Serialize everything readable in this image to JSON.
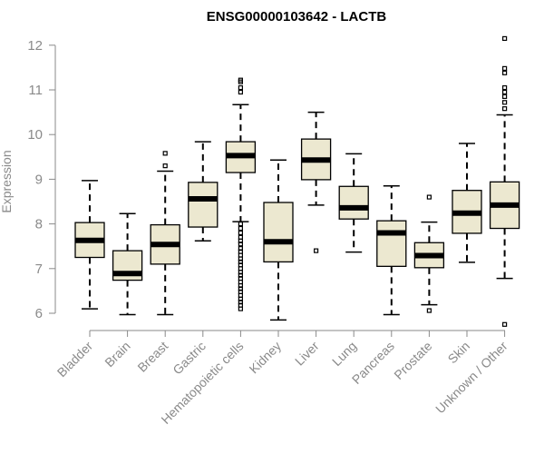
{
  "chart_data": {
    "type": "box",
    "title": "ENSG00000103642 - LACTB",
    "ylabel": "Expression",
    "xlabel": "",
    "ylim": [
      5.55,
      12.1
    ],
    "yticks": [
      6,
      7,
      8,
      9,
      10,
      11,
      12
    ],
    "ytick_labels": [
      "6",
      "7",
      "8",
      "9",
      "10",
      "11",
      "12"
    ],
    "grid": false,
    "box_color": "#ece8d0",
    "categories": [
      "Bladder",
      "Brain",
      "Breast",
      "Gastric",
      "Hematopoietic cells",
      "Kidney",
      "Liver",
      "Lung",
      "Pancreas",
      "Prostate",
      "Skin",
      "Unknown / Other"
    ],
    "boxes": [
      {
        "category": "Bladder",
        "whisker_low": 6.1,
        "q1": 7.25,
        "median": 7.63,
        "q3": 8.03,
        "whisker_high": 8.97,
        "outliers": []
      },
      {
        "category": "Brain",
        "whisker_low": 5.97,
        "q1": 6.74,
        "median": 6.89,
        "q3": 7.4,
        "whisker_high": 8.23,
        "outliers": []
      },
      {
        "category": "Breast",
        "whisker_low": 5.97,
        "q1": 7.1,
        "median": 7.54,
        "q3": 7.98,
        "whisker_high": 9.18,
        "outliers": [
          9.3,
          9.58
        ]
      },
      {
        "category": "Gastric",
        "whisker_low": 7.62,
        "q1": 7.93,
        "median": 8.56,
        "q3": 8.93,
        "whisker_high": 9.84,
        "outliers": []
      },
      {
        "category": "Hematopoietic cells",
        "whisker_low": 8.05,
        "q1": 9.15,
        "median": 9.53,
        "q3": 9.84,
        "whisker_high": 10.67,
        "outliers": [
          10.95,
          11.05,
          11.18,
          11.22,
          8.0,
          7.9,
          7.8,
          7.7,
          7.62,
          7.55,
          7.45,
          7.38,
          7.3,
          7.22,
          7.15,
          7.08,
          7.0,
          6.92,
          6.85,
          6.78,
          6.7,
          6.62,
          6.55,
          6.48,
          6.4,
          6.32,
          6.25,
          6.18,
          6.1
        ]
      },
      {
        "category": "Kidney",
        "whisker_low": 5.85,
        "q1": 7.15,
        "median": 7.6,
        "q3": 8.48,
        "whisker_high": 9.43,
        "outliers": []
      },
      {
        "category": "Liver",
        "whisker_low": 8.42,
        "q1": 8.99,
        "median": 9.43,
        "q3": 9.9,
        "whisker_high": 10.5,
        "outliers": [
          7.4
        ]
      },
      {
        "category": "Lung",
        "whisker_low": 7.37,
        "q1": 8.11,
        "median": 8.36,
        "q3": 8.84,
        "whisker_high": 9.57,
        "outliers": []
      },
      {
        "category": "Pancreas",
        "whisker_low": 5.97,
        "q1": 7.05,
        "median": 7.8,
        "q3": 8.07,
        "whisker_high": 8.85,
        "outliers": []
      },
      {
        "category": "Prostate",
        "whisker_low": 6.19,
        "q1": 7.02,
        "median": 7.29,
        "q3": 7.58,
        "whisker_high": 8.04,
        "outliers": [
          6.06,
          8.6
        ]
      },
      {
        "category": "Skin",
        "whisker_low": 7.14,
        "q1": 7.79,
        "median": 8.24,
        "q3": 8.75,
        "whisker_high": 9.8,
        "outliers": []
      },
      {
        "category": "Unknown / Other",
        "whisker_low": 6.78,
        "q1": 7.9,
        "median": 8.42,
        "q3": 8.94,
        "whisker_high": 10.44,
        "outliers": [
          5.75,
          10.58,
          10.72,
          10.85,
          10.95,
          11.05,
          11.38,
          11.48,
          12.15
        ]
      }
    ]
  }
}
